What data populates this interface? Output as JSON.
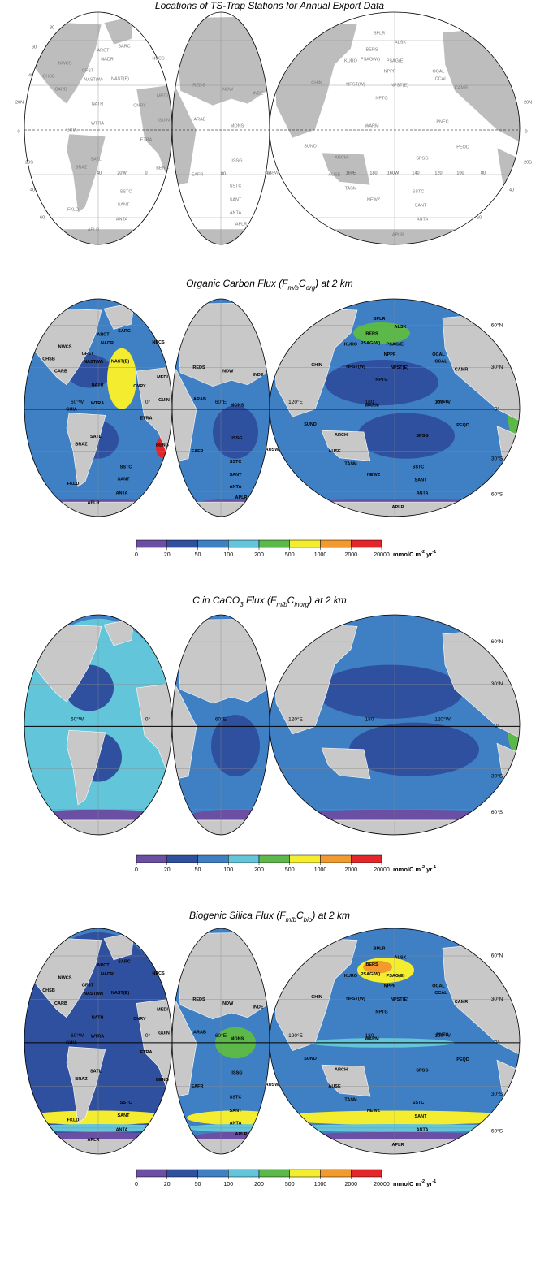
{
  "maps": [
    {
      "title_parts": [
        {
          "text": "Locations of TS-Trap Stations for Annual Export Data"
        }
      ],
      "labels": [
        "ARCT",
        "SARC",
        "NADR",
        "NECS",
        "NWCS",
        "GFST",
        "CHSB",
        "NAST(W)",
        "NAST(E)",
        "MEDI",
        "CARB",
        "NATR",
        "CNRY",
        "WTRA",
        "GUIN",
        "GUIA",
        "ETRA",
        "SATL",
        "BRAZ",
        "BENG",
        "SSTC",
        "SANT",
        "FKLD",
        "ANTA",
        "APLR",
        "REDS",
        "INDW",
        "INDE",
        "ARAB",
        "MONS",
        "EAFR",
        "ISSG",
        "AUSW",
        "SSTC",
        "SANT",
        "ANTA",
        "APLR",
        "BPLR",
        "ALSK",
        "BERS",
        "PSAG(W)",
        "PSAG(E)",
        "KURO",
        "NPPF",
        "NPST(W)",
        "NPST(E)",
        "OCAL",
        "CCAL",
        "CAMR",
        "CHIN",
        "NPTG",
        "PNEC",
        "WARM",
        "SUND",
        "PEQD",
        "ARCH",
        "SPSG",
        "AUSE",
        "TASM",
        "SSTC",
        "NEWZ",
        "SANT",
        "ANTA",
        "APLR"
      ],
      "lat_labels": [
        "80",
        "60",
        "40",
        "20N",
        "0",
        "20S",
        "40",
        "60",
        "20N",
        "0",
        "20S",
        "40",
        "60"
      ],
      "lon_labels": [
        "40",
        "20W",
        "0",
        "80",
        "100",
        "160E",
        "180",
        "160W",
        "140",
        "120",
        "100",
        "80"
      ]
    },
    {
      "title_parts": [
        {
          "text": "Organic Carbon Flux (F"
        },
        {
          "text": "m/b",
          "sub": true
        },
        {
          "text": "C"
        },
        {
          "text": "org",
          "sub": true
        },
        {
          "text": ") at 2 km"
        }
      ],
      "labels": [
        "ARCT",
        "SARC",
        "NADR",
        "NECS",
        "NWCS",
        "GFST",
        "CHSB",
        "NAST(W)",
        "NAST(E)",
        "MEDI",
        "CARB",
        "NATR",
        "CNRY",
        "WTRA",
        "GUIN",
        "GUIA",
        "ETRA",
        "SATL",
        "BRAZ",
        "BENG",
        "SSTC",
        "SANT",
        "FKLD",
        "ANTA",
        "APLR",
        "REDS",
        "INDW",
        "INDE",
        "ARAB",
        "MONS",
        "EAFR",
        "ISSG",
        "AUSW",
        "SSTC",
        "SANT",
        "ANTA",
        "APLR",
        "BPLR",
        "ALSK",
        "BERS",
        "PSAG(W)",
        "PSAG(E)",
        "KURO",
        "NPPF",
        "NPST(W)",
        "NPST(E)",
        "OCAL",
        "CCAL",
        "CAMR",
        "CHIN",
        "NPTG",
        "PNEC",
        "WARM",
        "SUND",
        "PEQD",
        "ARCH",
        "SPSG",
        "AUSE",
        "TASM",
        "SSTC",
        "NEWZ",
        "SANT",
        "ANTA",
        "APLR"
      ],
      "lat_labels": [
        "60°N",
        "30°N",
        "0°",
        "30°S",
        "60°S"
      ],
      "lon_labels": [
        "60°W",
        "0°",
        "60°E",
        "120°E",
        "180",
        "120°W"
      ]
    },
    {
      "title_parts": [
        {
          "text": "C in CaCO"
        },
        {
          "text": "3",
          "sub": true
        },
        {
          "text": " Flux (F"
        },
        {
          "text": "m/b",
          "sub": true
        },
        {
          "text": "C"
        },
        {
          "text": "inorg",
          "sub": true
        },
        {
          "text": ") at 2 km"
        }
      ],
      "labels": [],
      "lat_labels": [
        "60°N",
        "30°N",
        "0°",
        "30°S",
        "60°S"
      ],
      "lon_labels": [
        "60°W",
        "0°",
        "60°E",
        "120°E",
        "180",
        "120°W"
      ]
    },
    {
      "title_parts": [
        {
          "text": "Biogenic Silica Flux (F"
        },
        {
          "text": "m/b",
          "sub": true
        },
        {
          "text": "C"
        },
        {
          "text": "bio",
          "sub": true
        },
        {
          "text": ") at 2 km"
        }
      ],
      "labels": [
        "ARCT",
        "SARC",
        "NADR",
        "NECS",
        "NWCS",
        "GFST",
        "CHSB",
        "NAST(W)",
        "NAST(E)",
        "MEDI",
        "CARB",
        "NATR",
        "CNRY",
        "WTRA",
        "GUIN",
        "GUIA",
        "ETRA",
        "SATL",
        "BRAZ",
        "BENG",
        "SSTC",
        "SANT",
        "FKLD",
        "ANTA",
        "APLR",
        "REDS",
        "INDW",
        "INDE",
        "ARAB",
        "MONS",
        "EAFR",
        "ISSG",
        "AUSW",
        "SSTC",
        "SANT",
        "ANTA",
        "APLR",
        "BPLR",
        "ALSK",
        "BERS",
        "PSAG(W)",
        "PSAG(E)",
        "KURO",
        "NPPF",
        "NPST(W)",
        "NPST(E)",
        "OCAL",
        "CCAL",
        "CAMR",
        "CHIN",
        "NPTG",
        "PNEC",
        "WARM",
        "SUND",
        "PEQD",
        "ARCH",
        "SPSG",
        "AUSE",
        "TASM",
        "SSTC",
        "NEWZ",
        "SANT",
        "ANTA",
        "APLR"
      ],
      "lat_labels": [
        "60°N",
        "30°N",
        "0°",
        "30°S",
        "60°S"
      ],
      "lon_labels": [
        "60°W",
        "0°",
        "60°E",
        "120°E",
        "180",
        "120°W"
      ]
    }
  ],
  "colorbar": {
    "ticks": [
      0,
      20,
      50,
      100,
      200,
      500,
      1000,
      2000,
      20000
    ],
    "colors": [
      "#6a4fa3",
      "#2f4f9f",
      "#3f80c5",
      "#62c5da",
      "#5cb848",
      "#f3ec2f",
      "#f29a2e",
      "#e2262a"
    ],
    "unit_parts": [
      {
        "text": "mmolC m"
      },
      {
        "text": "-2",
        "sup": true
      },
      {
        "text": " yr"
      },
      {
        "text": "-1",
        "sup": true
      }
    ]
  }
}
